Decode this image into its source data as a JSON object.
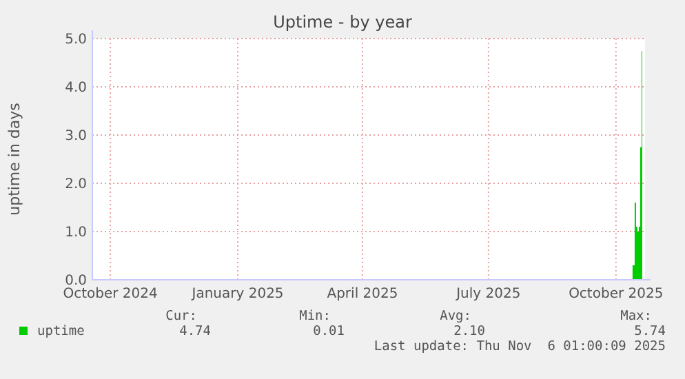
{
  "chart_data": {
    "type": "area",
    "title": "Uptime - by year",
    "ylabel": "uptime in days",
    "x": [
      "2025-10-13",
      "2025-10-14",
      "2025-10-15",
      "2025-10-16",
      "2025-10-17",
      "2025-10-18",
      "2025-10-19",
      "2025-10-20"
    ],
    "series": [
      {
        "name": "uptime",
        "color": "#00cc00",
        "values": [
          0.3,
          0.3,
          1.6,
          1.1,
          1.0,
          1.1,
          2.75,
          4.74
        ]
      }
    ],
    "xlim": [
      "2024-09-18",
      "2025-10-22"
    ],
    "xticks": [
      {
        "value": "2024-10-01",
        "label": "October 2024"
      },
      {
        "value": "2025-01-01",
        "label": "January 2025"
      },
      {
        "value": "2025-04-01",
        "label": "April 2025"
      },
      {
        "value": "2025-07-01",
        "label": "July 2025"
      },
      {
        "value": "2025-10-01",
        "label": "October 2025"
      }
    ],
    "ylim": [
      0,
      5
    ],
    "yticks": [
      {
        "value": 0,
        "label": "0.0"
      },
      {
        "value": 1,
        "label": "1.0"
      },
      {
        "value": 2,
        "label": "2.0"
      },
      {
        "value": 3,
        "label": "3.0"
      },
      {
        "value": 4,
        "label": "4.0"
      },
      {
        "value": 5,
        "label": "5.0"
      }
    ],
    "grid": true,
    "legend": "bottom",
    "annotations": [
      "Cur:",
      "Min:",
      "Avg:",
      "Max:",
      "4.74",
      "0.01",
      "2.10",
      "5.74",
      "Last update: Thu Nov  6 01:00:09 2025"
    ]
  }
}
